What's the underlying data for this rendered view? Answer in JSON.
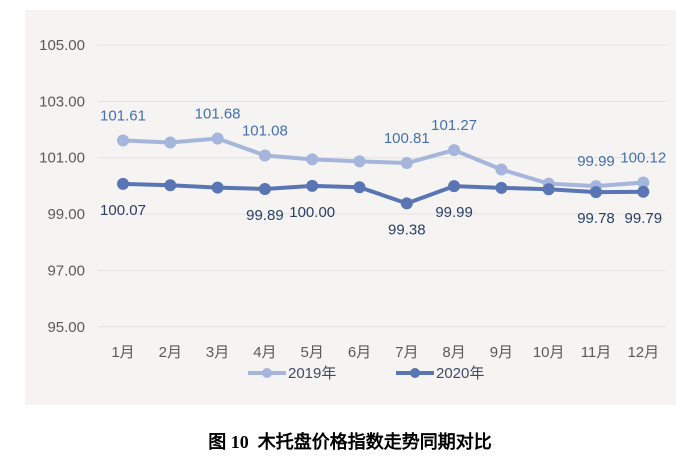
{
  "page": {
    "caption": "图 10  木托盘价格指数走势同期对比"
  },
  "chart_data": {
    "type": "line",
    "title": "",
    "xlabel": "",
    "ylabel": "",
    "categories": [
      "1月",
      "2月",
      "3月",
      "4月",
      "5月",
      "6月",
      "7月",
      "8月",
      "9月",
      "10月",
      "11月",
      "12月"
    ],
    "y_ticks": [
      "105.00",
      "103.00",
      "101.00",
      "99.00",
      "97.00",
      "95.00"
    ],
    "ylim": [
      95,
      105
    ],
    "grid": "horizontal-only",
    "legend_position": "bottom-center",
    "panel_background": "#f5f4f2",
    "gridline_color": "#e4e2df",
    "axis_text_color": "#595a5c",
    "series": [
      {
        "name": "2019年",
        "color": "#a6b5dc",
        "label_color": "#4470b0",
        "label_side": "above",
        "values": [
          101.61,
          101.54,
          101.68,
          101.08,
          100.94,
          100.87,
          100.81,
          101.27,
          100.58,
          100.08,
          99.99,
          100.12
        ],
        "point_labels": [
          "101.61",
          null,
          "101.68",
          "101.08",
          null,
          null,
          "100.81",
          "101.27",
          null,
          null,
          "99.99",
          "100.12"
        ]
      },
      {
        "name": "2020年",
        "color": "#5a75b4",
        "label_color": "#2a3f63",
        "label_side": "below",
        "values": [
          100.07,
          100.02,
          99.94,
          99.89,
          100.0,
          99.95,
          99.38,
          99.99,
          99.93,
          99.88,
          99.78,
          99.79
        ],
        "point_labels": [
          "100.07",
          null,
          null,
          "99.89",
          "100.00",
          null,
          "99.38",
          "99.99",
          null,
          null,
          "99.78",
          "99.79"
        ]
      }
    ]
  }
}
